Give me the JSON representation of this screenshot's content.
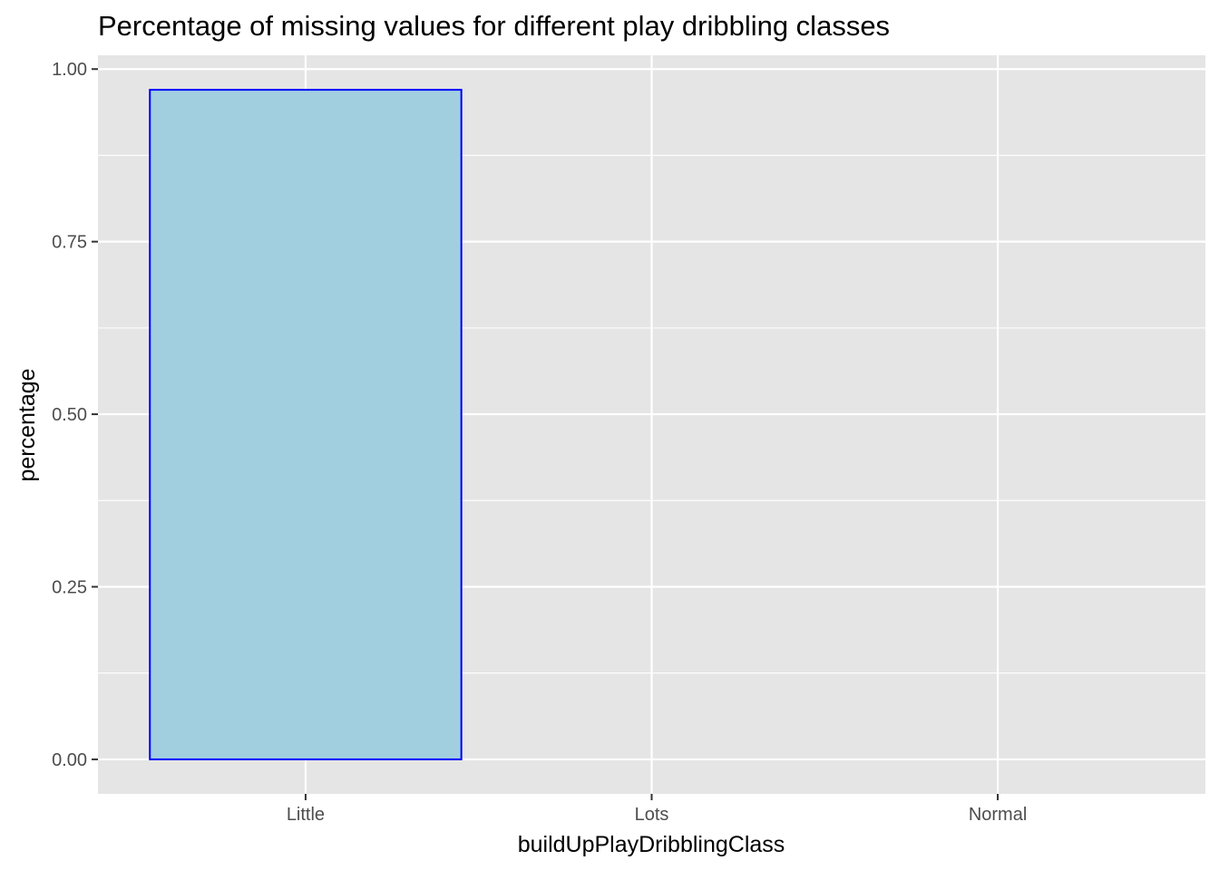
{
  "chart_data": {
    "type": "bar",
    "title": "Percentage of missing values for different play dribbling classes",
    "xlabel": "buildUpPlayDribblingClass",
    "ylabel": "percentage",
    "categories": [
      "Little",
      "Lots",
      "Normal"
    ],
    "values": [
      0.97,
      0.0,
      0.0
    ],
    "ylim": [
      -0.05,
      1.02
    ],
    "yticks": [
      0.0,
      0.25,
      0.5,
      0.75,
      1.0
    ],
    "ytick_labels": [
      "0.00",
      "0.25",
      "0.50",
      "0.75",
      "1.00"
    ],
    "grid": true,
    "legend": "none",
    "colors": {
      "panel_background": "#e5e5e5",
      "grid_line": "#ffffff",
      "bar_fill": "#a1cfe0",
      "bar_outline": "#0000ff",
      "tick_text": "#4d4d4d",
      "tick_mark": "#333333"
    }
  }
}
